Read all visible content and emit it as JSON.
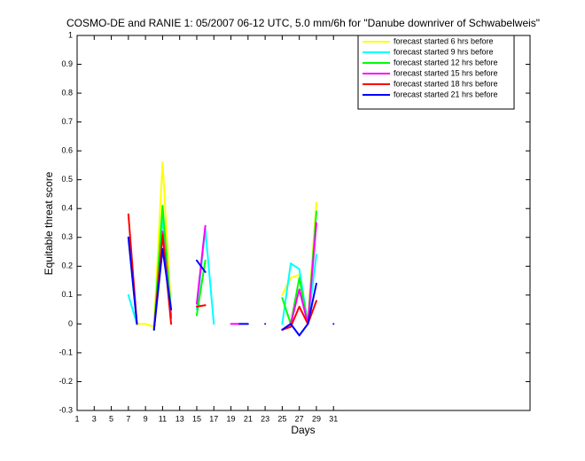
{
  "chart_data": {
    "type": "line",
    "title": "COSMO-DE and RANIE 1: 05/2007 06-12 UTC, 5.0 mm/6h for \"Danube downriver of Schwabelweis\"",
    "xlabel": "Days",
    "ylabel": "Equitable threat score",
    "x": [
      1,
      2,
      3,
      4,
      5,
      6,
      7,
      8,
      9,
      10,
      11,
      12,
      13,
      14,
      15,
      16,
      17,
      18,
      19,
      20,
      21,
      22,
      23,
      24,
      25,
      26,
      27,
      28,
      29,
      30,
      31
    ],
    "series": [
      {
        "name": "forecast started 6 hrs before",
        "color": "#ffff00",
        "values": [
          null,
          null,
          null,
          null,
          null,
          null,
          null,
          0,
          0,
          -0.01,
          0.56,
          0.05,
          null,
          null,
          null,
          null,
          null,
          null,
          null,
          null,
          null,
          null,
          null,
          null,
          0.1,
          0.16,
          0.17,
          0.01,
          0.42,
          null,
          null
        ]
      },
      {
        "name": "forecast started 9 hrs before",
        "color": "#00ffff",
        "values": [
          null,
          null,
          null,
          null,
          null,
          null,
          0.1,
          0,
          null,
          -0.02,
          0.37,
          0.05,
          null,
          null,
          0.05,
          0.33,
          0,
          null,
          null,
          null,
          null,
          null,
          null,
          null,
          0,
          0.21,
          0.19,
          0,
          0.24,
          null,
          null
        ]
      },
      {
        "name": "forecast started 12 hrs before",
        "color": "#00ff00",
        "values": [
          null,
          null,
          null,
          null,
          null,
          null,
          0.3,
          0,
          null,
          -0.02,
          0.41,
          0.03,
          null,
          null,
          0.03,
          0.22,
          null,
          null,
          null,
          null,
          null,
          null,
          null,
          null,
          0.09,
          0,
          0.16,
          0,
          0.39,
          null,
          null
        ]
      },
      {
        "name": "forecast started 15 hrs before",
        "color": "#ff00ff",
        "values": [
          null,
          null,
          null,
          null,
          null,
          null,
          null,
          null,
          null,
          null,
          0.32,
          0.02,
          null,
          null,
          0.07,
          0.34,
          null,
          null,
          0,
          0,
          null,
          null,
          null,
          null,
          -0.02,
          0,
          0.12,
          0,
          0.35,
          null,
          null
        ]
      },
      {
        "name": "forecast started 18 hrs before",
        "color": "#ff0000",
        "values": [
          null,
          null,
          null,
          null,
          null,
          null,
          0.38,
          0,
          null,
          -0.02,
          0.31,
          0,
          null,
          null,
          0.06,
          0.065,
          null,
          null,
          null,
          null,
          null,
          null,
          null,
          null,
          -0.02,
          -0.01,
          0.06,
          0,
          0.08,
          null,
          null
        ]
      },
      {
        "name": "forecast started 21 hrs before",
        "color": "#0000ff",
        "values": [
          null,
          null,
          null,
          null,
          null,
          null,
          0.3,
          0,
          null,
          -0.02,
          0.26,
          0.05,
          null,
          null,
          0.22,
          0.18,
          null,
          null,
          null,
          0,
          0,
          null,
          0,
          null,
          -0.02,
          0,
          -0.04,
          0,
          0.14,
          null,
          0
        ]
      }
    ],
    "xlim": [
      1,
      54
    ],
    "xticks": [
      1,
      3,
      5,
      7,
      9,
      11,
      13,
      15,
      17,
      19,
      21,
      23,
      25,
      27,
      29,
      31
    ],
    "ylim": [
      -0.3,
      1
    ],
    "yticks": [
      -0.3,
      -0.2,
      -0.1,
      0,
      0.1,
      0.2,
      0.3,
      0.4,
      0.5,
      0.6,
      0.7,
      0.8,
      0.9,
      1
    ],
    "legend": "upper right"
  }
}
